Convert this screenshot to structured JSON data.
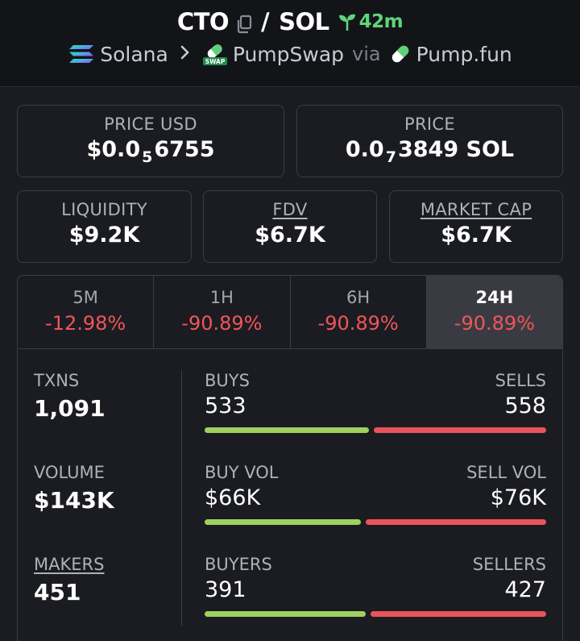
{
  "header": {
    "base_token": "CTO",
    "separator": "/",
    "quote_token": "SOL",
    "age": "42m",
    "chain": "Solana",
    "dex": "PumpSwap",
    "dex_badge": "SWAP",
    "via": "via",
    "launchpad": "Pump.fun"
  },
  "prices": {
    "price_usd": {
      "label": "PRICE USD",
      "prefix": "$0.0",
      "zeros": "5",
      "suffix": "6755"
    },
    "price": {
      "label": "PRICE",
      "prefix": "0.0",
      "zeros": "7",
      "suffix": "3849 SOL"
    }
  },
  "stats": {
    "liquidity": {
      "label": "LIQUIDITY",
      "value": "$9.2K"
    },
    "fdv": {
      "label": "FDV",
      "value": "$6.7K"
    },
    "market_cap": {
      "label": "MARKET CAP",
      "value": "$6.7K"
    }
  },
  "tabs": [
    {
      "label": "5M",
      "change": "-12.98%"
    },
    {
      "label": "1H",
      "change": "-90.89%"
    },
    {
      "label": "6H",
      "change": "-90.89%"
    },
    {
      "label": "24H",
      "change": "-90.89%",
      "active": true
    }
  ],
  "metrics": {
    "txns": {
      "label": "TXNS",
      "value": "1,091"
    },
    "volume": {
      "label": "VOLUME",
      "value": "$143K"
    },
    "makers": {
      "label": "MAKERS",
      "value": "451"
    }
  },
  "ratios": {
    "buys_sells": {
      "left_label": "BUYS",
      "left_value": "533",
      "right_label": "SELLS",
      "right_value": "558",
      "left_share": 0.489
    },
    "vol": {
      "left_label": "BUY VOL",
      "left_value": "$66K",
      "right_label": "SELL VOL",
      "right_value": "$76K",
      "left_share": 0.465
    },
    "buyers_sellers": {
      "left_label": "BUYERS",
      "left_value": "391",
      "right_label": "SELLERS",
      "right_value": "427",
      "left_share": 0.478
    }
  },
  "colors": {
    "positive": "#9fd160",
    "negative": "#e9545a",
    "age_green": "#5ed57a"
  }
}
